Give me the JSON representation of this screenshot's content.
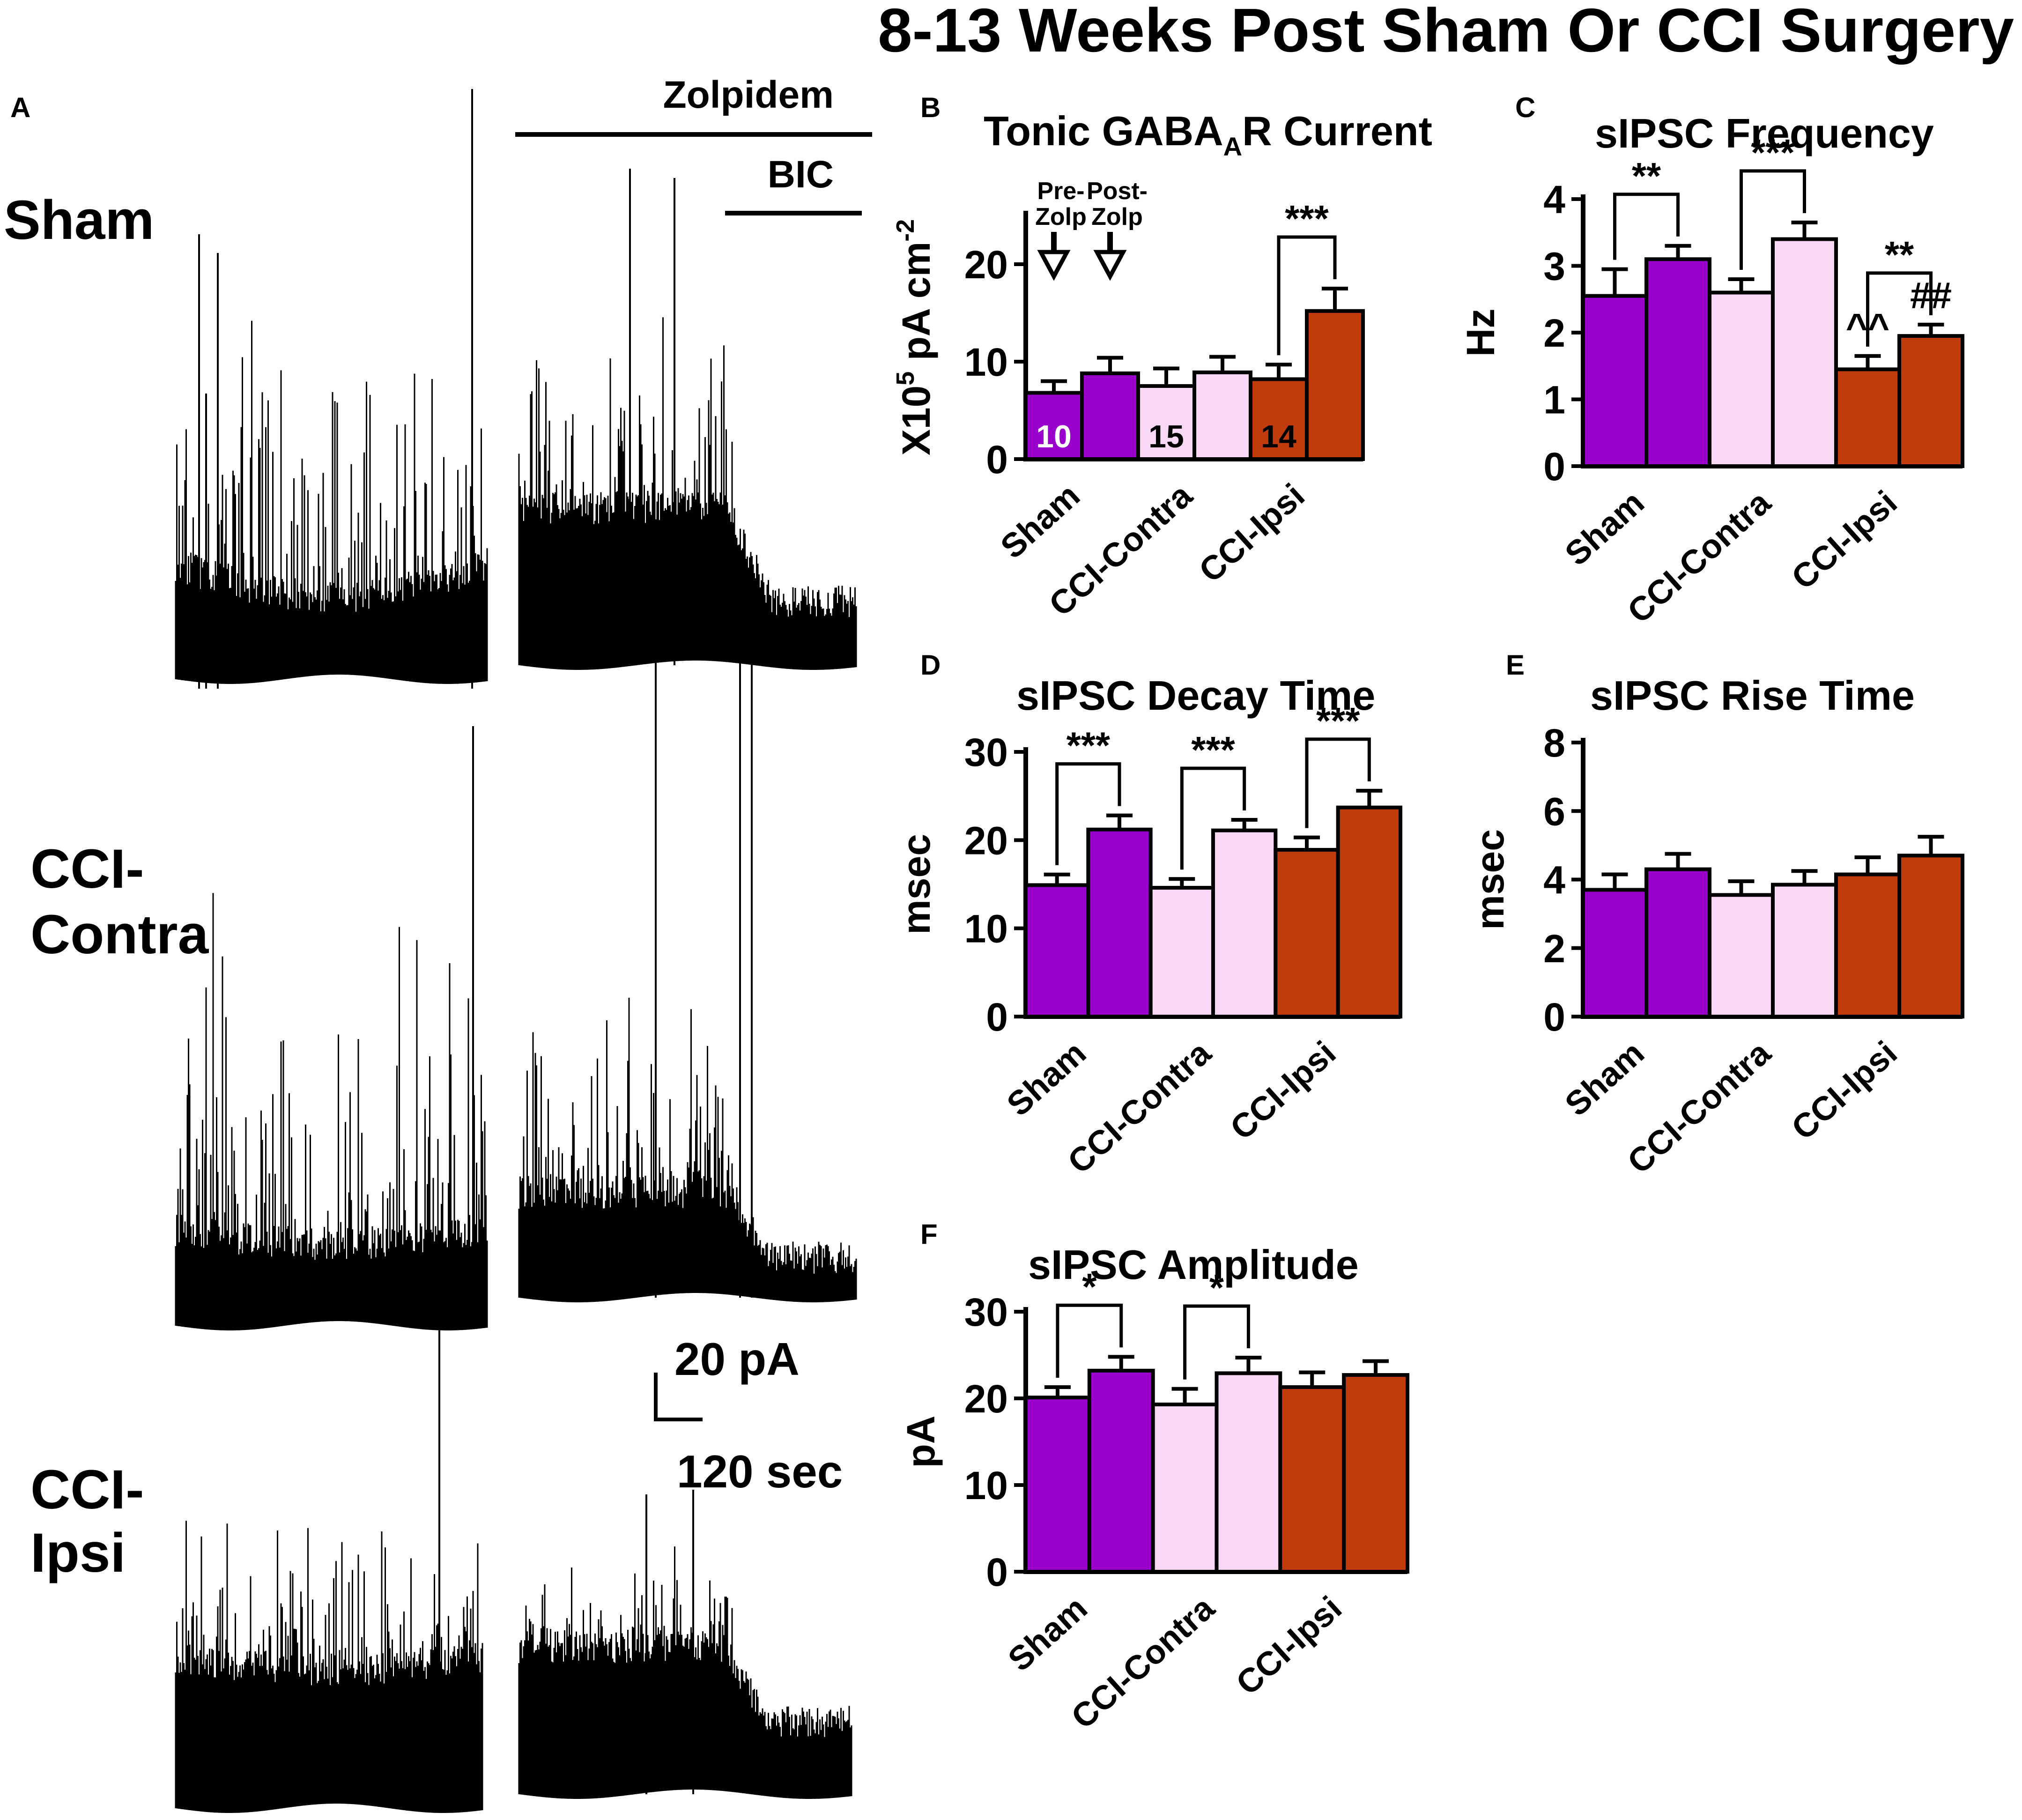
{
  "title": "8-13 Weeks Post Sham Or CCI Surgery",
  "colors": {
    "sham": "#9900cc",
    "contra": "#f8d8f4",
    "ipsi": "#c03c0c",
    "ink": "#000000"
  },
  "panel_a": {
    "letter": "A",
    "rows": [
      {
        "label_lines": [
          "Sham"
        ]
      },
      {
        "label_lines": [
          "CCI-",
          "Contra"
        ]
      },
      {
        "label_lines": [
          "CCI-",
          "Ipsi"
        ]
      }
    ],
    "zolpidem_label": "Zolpidem",
    "bic_label": "BIC",
    "scale_amp_label": "20 pA",
    "scale_time_label": "120 sec"
  },
  "chart_data": [
    {
      "id": "B",
      "type": "bar",
      "letter": "B",
      "title_main": "Tonic GABA",
      "title_sub": "A",
      "title_end": "R Current",
      "ylabel_main": "X10",
      "ylabel_sup1": "5",
      "ylabel_mid": " pA cm",
      "ylabel_sup2": "-2",
      "ylim": [
        0,
        25
      ],
      "yticks": [
        0,
        10,
        20
      ],
      "categories": [
        "Sham",
        "CCI-Contra",
        "CCI-Ipsi"
      ],
      "series": [
        {
          "name": "Pre-Zolp",
          "values": [
            6.8,
            7.5,
            8.2
          ],
          "errors": [
            1.2,
            1.8,
            1.5
          ]
        },
        {
          "name": "Post-Zolp",
          "values": [
            8.8,
            8.9,
            15.2
          ],
          "errors": [
            1.6,
            1.6,
            2.3
          ]
        }
      ],
      "n_labels": [
        "10",
        "15",
        "14"
      ],
      "arrow_labels": [
        [
          "Pre-",
          "Zolp"
        ],
        [
          "Post-",
          "Zolp"
        ]
      ],
      "annotations": [
        {
          "text": "***",
          "group": 2
        }
      ]
    },
    {
      "id": "C",
      "type": "bar",
      "letter": "C",
      "title": "sIPSC Frequency",
      "ylabel": "Hz",
      "ylim": [
        0,
        4
      ],
      "yticks": [
        0,
        1,
        2,
        3,
        4
      ],
      "categories": [
        "Sham",
        "CCI-Contra",
        "CCI-Ipsi"
      ],
      "series": [
        {
          "name": "Pre-Zolp",
          "values": [
            2.55,
            2.6,
            1.45
          ],
          "errors": [
            0.4,
            0.2,
            0.2
          ]
        },
        {
          "name": "Post-Zolp",
          "values": [
            3.1,
            3.4,
            1.95
          ],
          "errors": [
            0.2,
            0.25,
            0.17
          ]
        }
      ],
      "annotations": [
        {
          "text": "**",
          "group": 0
        },
        {
          "text": "***",
          "group": 1
        },
        {
          "text": "**",
          "group": 2
        },
        {
          "text": "^^",
          "group": 2,
          "bar": 0
        },
        {
          "text": "##",
          "group": 2,
          "bar": 1
        }
      ]
    },
    {
      "id": "D",
      "type": "bar",
      "letter": "D",
      "title": "sIPSC Decay Time",
      "ylabel": "msec",
      "ylim": [
        0,
        30
      ],
      "yticks": [
        0,
        10,
        20,
        30
      ],
      "categories": [
        "Sham",
        "CCI-Contra",
        "CCI-Ipsi"
      ],
      "series": [
        {
          "name": "Pre-Zolp",
          "values": [
            14.9,
            14.6,
            18.9
          ],
          "errors": [
            1.2,
            1.0,
            1.4
          ]
        },
        {
          "name": "Post-Zolp",
          "values": [
            21.2,
            21.1,
            23.7
          ],
          "errors": [
            1.6,
            1.2,
            1.9
          ]
        }
      ],
      "annotations": [
        {
          "text": "***",
          "group": 0
        },
        {
          "text": "***",
          "group": 1
        },
        {
          "text": "***",
          "group": 2
        }
      ]
    },
    {
      "id": "E",
      "type": "bar",
      "letter": "E",
      "title": "sIPSC Rise Time",
      "ylabel": "msec",
      "ylim": [
        0,
        8
      ],
      "yticks": [
        0,
        2,
        4,
        6,
        8
      ],
      "categories": [
        "Sham",
        "CCI-Contra",
        "CCI-Ipsi"
      ],
      "series": [
        {
          "name": "Pre-Zolp",
          "values": [
            3.7,
            3.55,
            4.15
          ],
          "errors": [
            0.45,
            0.4,
            0.5
          ]
        },
        {
          "name": "Post-Zolp",
          "values": [
            4.3,
            3.85,
            4.7
          ],
          "errors": [
            0.45,
            0.4,
            0.55
          ]
        }
      ],
      "annotations": []
    },
    {
      "id": "F",
      "type": "bar",
      "letter": "F",
      "title": "sIPSC Amplitude",
      "ylabel": "pA",
      "ylim": [
        0,
        30
      ],
      "yticks": [
        0,
        10,
        20,
        30
      ],
      "categories": [
        "Sham",
        "CCI-Contra",
        "CCI-Ipsi"
      ],
      "series": [
        {
          "name": "Pre-Zolp",
          "values": [
            20.1,
            19.3,
            21.3
          ],
          "errors": [
            1.2,
            1.8,
            1.7
          ]
        },
        {
          "name": "Post-Zolp",
          "values": [
            23.2,
            22.9,
            22.7
          ],
          "errors": [
            1.6,
            1.8,
            1.6
          ]
        }
      ],
      "annotations": [
        {
          "text": "*",
          "group": 0
        },
        {
          "text": "*",
          "group": 1
        }
      ]
    }
  ]
}
